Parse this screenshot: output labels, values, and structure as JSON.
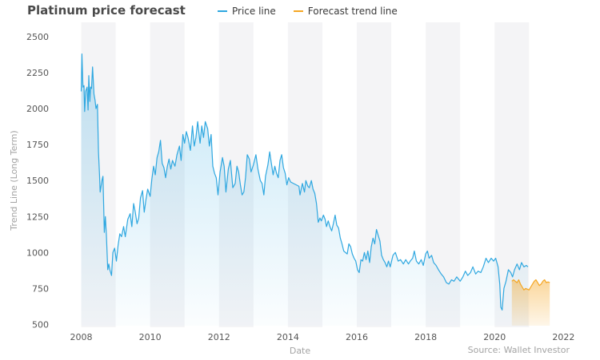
{
  "header": {
    "title": "Platinum price forecast",
    "legend": [
      {
        "label": "Price line",
        "color": "#2ea7e0"
      },
      {
        "label": "Forecast trend line",
        "color": "#f5a623"
      }
    ]
  },
  "footer": {
    "source": "Source: Wallet Investor"
  },
  "chart_data": {
    "type": "line",
    "title": "Platinum price forecast",
    "xlabel": "Date",
    "ylabel": "Trend Line (Long Term)",
    "xlim": [
      2007.5,
      2022.2
    ],
    "ylim": [
      480,
      2600
    ],
    "x_ticks": [
      2008,
      2010,
      2012,
      2014,
      2016,
      2018,
      2020,
      2022
    ],
    "y_ticks": [
      500,
      750,
      1000,
      1250,
      1500,
      1750,
      2000,
      2250,
      2500
    ],
    "legend_position": "top",
    "grid": true,
    "series": [
      {
        "name": "Price line",
        "color": "#2ea7e0",
        "points": [
          [
            2008.0,
            2120
          ],
          [
            2008.02,
            2380
          ],
          [
            2008.05,
            2150
          ],
          [
            2008.08,
            2160
          ],
          [
            2008.1,
            1980
          ],
          [
            2008.13,
            2120
          ],
          [
            2008.17,
            2150
          ],
          [
            2008.2,
            1990
          ],
          [
            2008.22,
            2230
          ],
          [
            2008.25,
            2050
          ],
          [
            2008.27,
            2150
          ],
          [
            2008.3,
            2140
          ],
          [
            2008.33,
            2290
          ],
          [
            2008.37,
            2100
          ],
          [
            2008.4,
            2060
          ],
          [
            2008.43,
            2000
          ],
          [
            2008.47,
            2030
          ],
          [
            2008.5,
            1700
          ],
          [
            2008.53,
            1540
          ],
          [
            2008.55,
            1420
          ],
          [
            2008.6,
            1500
          ],
          [
            2008.63,
            1530
          ],
          [
            2008.67,
            1140
          ],
          [
            2008.7,
            1250
          ],
          [
            2008.73,
            1120
          ],
          [
            2008.77,
            880
          ],
          [
            2008.8,
            920
          ],
          [
            2008.83,
            880
          ],
          [
            2008.88,
            840
          ],
          [
            2008.92,
            1000
          ],
          [
            2008.97,
            1030
          ],
          [
            2009.02,
            940
          ],
          [
            2009.07,
            1050
          ],
          [
            2009.12,
            1130
          ],
          [
            2009.17,
            1110
          ],
          [
            2009.23,
            1180
          ],
          [
            2009.28,
            1110
          ],
          [
            2009.35,
            1230
          ],
          [
            2009.42,
            1270
          ],
          [
            2009.47,
            1180
          ],
          [
            2009.52,
            1340
          ],
          [
            2009.57,
            1280
          ],
          [
            2009.62,
            1200
          ],
          [
            2009.67,
            1240
          ],
          [
            2009.72,
            1380
          ],
          [
            2009.78,
            1430
          ],
          [
            2009.83,
            1280
          ],
          [
            2009.88,
            1370
          ],
          [
            2009.93,
            1440
          ],
          [
            2010.0,
            1390
          ],
          [
            2010.05,
            1510
          ],
          [
            2010.1,
            1600
          ],
          [
            2010.15,
            1540
          ],
          [
            2010.2,
            1660
          ],
          [
            2010.25,
            1700
          ],
          [
            2010.3,
            1780
          ],
          [
            2010.35,
            1620
          ],
          [
            2010.4,
            1590
          ],
          [
            2010.45,
            1520
          ],
          [
            2010.5,
            1600
          ],
          [
            2010.55,
            1650
          ],
          [
            2010.6,
            1580
          ],
          [
            2010.65,
            1640
          ],
          [
            2010.72,
            1600
          ],
          [
            2010.78,
            1680
          ],
          [
            2010.85,
            1740
          ],
          [
            2010.9,
            1640
          ],
          [
            2010.95,
            1820
          ],
          [
            2011.0,
            1760
          ],
          [
            2011.05,
            1840
          ],
          [
            2011.1,
            1800
          ],
          [
            2011.17,
            1710
          ],
          [
            2011.23,
            1880
          ],
          [
            2011.28,
            1740
          ],
          [
            2011.33,
            1800
          ],
          [
            2011.38,
            1910
          ],
          [
            2011.45,
            1760
          ],
          [
            2011.5,
            1880
          ],
          [
            2011.55,
            1800
          ],
          [
            2011.6,
            1910
          ],
          [
            2011.67,
            1860
          ],
          [
            2011.72,
            1740
          ],
          [
            2011.77,
            1820
          ],
          [
            2011.82,
            1600
          ],
          [
            2011.87,
            1550
          ],
          [
            2011.92,
            1520
          ],
          [
            2011.97,
            1400
          ],
          [
            2012.03,
            1560
          ],
          [
            2012.1,
            1660
          ],
          [
            2012.15,
            1600
          ],
          [
            2012.2,
            1420
          ],
          [
            2012.27,
            1580
          ],
          [
            2012.33,
            1640
          ],
          [
            2012.4,
            1450
          ],
          [
            2012.47,
            1480
          ],
          [
            2012.52,
            1600
          ],
          [
            2012.57,
            1560
          ],
          [
            2012.62,
            1470
          ],
          [
            2012.67,
            1400
          ],
          [
            2012.72,
            1420
          ],
          [
            2012.77,
            1520
          ],
          [
            2012.82,
            1680
          ],
          [
            2012.88,
            1650
          ],
          [
            2012.93,
            1560
          ],
          [
            2013.0,
            1610
          ],
          [
            2013.07,
            1680
          ],
          [
            2013.13,
            1580
          ],
          [
            2013.2,
            1500
          ],
          [
            2013.25,
            1480
          ],
          [
            2013.3,
            1400
          ],
          [
            2013.35,
            1530
          ],
          [
            2013.42,
            1610
          ],
          [
            2013.47,
            1700
          ],
          [
            2013.52,
            1620
          ],
          [
            2013.57,
            1540
          ],
          [
            2013.62,
            1600
          ],
          [
            2013.67,
            1550
          ],
          [
            2013.72,
            1520
          ],
          [
            2013.77,
            1640
          ],
          [
            2013.82,
            1680
          ],
          [
            2013.87,
            1590
          ],
          [
            2013.92,
            1550
          ],
          [
            2013.97,
            1470
          ],
          [
            2014.02,
            1520
          ],
          [
            2014.08,
            1490
          ],
          [
            2014.32,
            1460
          ],
          [
            2014.35,
            1400
          ],
          [
            2014.42,
            1480
          ],
          [
            2014.48,
            1420
          ],
          [
            2014.52,
            1500
          ],
          [
            2014.58,
            1460
          ],
          [
            2014.62,
            1450
          ],
          [
            2014.68,
            1500
          ],
          [
            2014.73,
            1440
          ],
          [
            2014.78,
            1410
          ],
          [
            2014.83,
            1340
          ],
          [
            2014.88,
            1210
          ],
          [
            2014.93,
            1240
          ],
          [
            2014.97,
            1220
          ],
          [
            2015.03,
            1260
          ],
          [
            2015.08,
            1230
          ],
          [
            2015.12,
            1180
          ],
          [
            2015.17,
            1220
          ],
          [
            2015.22,
            1180
          ],
          [
            2015.27,
            1150
          ],
          [
            2015.32,
            1200
          ],
          [
            2015.37,
            1260
          ],
          [
            2015.42,
            1190
          ],
          [
            2015.47,
            1170
          ],
          [
            2015.52,
            1100
          ],
          [
            2015.57,
            1060
          ],
          [
            2015.62,
            1010
          ],
          [
            2015.67,
            1000
          ],
          [
            2015.72,
            990
          ],
          [
            2015.77,
            1060
          ],
          [
            2015.82,
            1040
          ],
          [
            2015.87,
            990
          ],
          [
            2015.92,
            960
          ],
          [
            2015.97,
            940
          ],
          [
            2016.02,
            880
          ],
          [
            2016.07,
            860
          ],
          [
            2016.12,
            950
          ],
          [
            2016.17,
            940
          ],
          [
            2016.22,
            1000
          ],
          [
            2016.27,
            950
          ],
          [
            2016.32,
            1010
          ],
          [
            2016.37,
            930
          ],
          [
            2016.42,
            1040
          ],
          [
            2016.47,
            1100
          ],
          [
            2016.52,
            1060
          ],
          [
            2016.57,
            1160
          ],
          [
            2016.62,
            1120
          ],
          [
            2016.67,
            1080
          ],
          [
            2016.72,
            980
          ],
          [
            2016.77,
            950
          ],
          [
            2016.82,
            930
          ],
          [
            2016.87,
            900
          ],
          [
            2016.92,
            940
          ],
          [
            2016.97,
            900
          ],
          [
            2017.05,
            980
          ],
          [
            2017.12,
            1000
          ],
          [
            2017.2,
            940
          ],
          [
            2017.27,
            950
          ],
          [
            2017.35,
            920
          ],
          [
            2017.42,
            950
          ],
          [
            2017.5,
            920
          ],
          [
            2017.55,
            940
          ],
          [
            2017.62,
            960
          ],
          [
            2017.67,
            1010
          ],
          [
            2017.73,
            940
          ],
          [
            2017.8,
            920
          ],
          [
            2017.87,
            950
          ],
          [
            2017.93,
            910
          ],
          [
            2018.0,
            990
          ],
          [
            2018.05,
            1010
          ],
          [
            2018.1,
            960
          ],
          [
            2018.17,
            980
          ],
          [
            2018.23,
            930
          ],
          [
            2018.3,
            910
          ],
          [
            2018.37,
            880
          ],
          [
            2018.45,
            850
          ],
          [
            2018.52,
            830
          ],
          [
            2018.6,
            790
          ],
          [
            2018.67,
            780
          ],
          [
            2018.75,
            810
          ],
          [
            2018.82,
            800
          ],
          [
            2018.9,
            830
          ],
          [
            2019.0,
            800
          ],
          [
            2019.08,
            830
          ],
          [
            2019.15,
            870
          ],
          [
            2019.22,
            840
          ],
          [
            2019.3,
            860
          ],
          [
            2019.37,
            900
          ],
          [
            2019.45,
            850
          ],
          [
            2019.52,
            870
          ],
          [
            2019.6,
            860
          ],
          [
            2019.67,
            900
          ],
          [
            2019.75,
            960
          ],
          [
            2019.82,
            930
          ],
          [
            2019.9,
            960
          ],
          [
            2019.97,
            940
          ],
          [
            2020.03,
            960
          ],
          [
            2020.1,
            900
          ],
          [
            2020.15,
            780
          ],
          [
            2020.18,
            620
          ],
          [
            2020.22,
            600
          ],
          [
            2020.27,
            750
          ],
          [
            2020.33,
            800
          ],
          [
            2020.4,
            880
          ],
          [
            2020.47,
            860
          ],
          [
            2020.52,
            830
          ],
          [
            2020.58,
            880
          ],
          [
            2020.65,
            920
          ],
          [
            2020.72,
            880
          ],
          [
            2020.78,
            930
          ],
          [
            2020.85,
            900
          ],
          [
            2020.92,
            910
          ],
          [
            2020.97,
            900
          ]
        ]
      },
      {
        "name": "Forecast trend line",
        "color": "#f5a623",
        "points": [
          [
            2020.5,
            800
          ],
          [
            2020.55,
            810
          ],
          [
            2020.6,
            800
          ],
          [
            2020.65,
            790
          ],
          [
            2020.7,
            810
          ],
          [
            2020.75,
            780
          ],
          [
            2020.8,
            760
          ],
          [
            2020.85,
            740
          ],
          [
            2020.9,
            750
          ],
          [
            2020.95,
            745
          ],
          [
            2021.0,
            740
          ],
          [
            2021.05,
            760
          ],
          [
            2021.1,
            780
          ],
          [
            2021.15,
            800
          ],
          [
            2021.2,
            810
          ],
          [
            2021.25,
            790
          ],
          [
            2021.3,
            770
          ],
          [
            2021.35,
            780
          ],
          [
            2021.4,
            800
          ],
          [
            2021.45,
            810
          ],
          [
            2021.5,
            790
          ],
          [
            2021.55,
            795
          ],
          [
            2021.6,
            790
          ]
        ]
      }
    ]
  }
}
